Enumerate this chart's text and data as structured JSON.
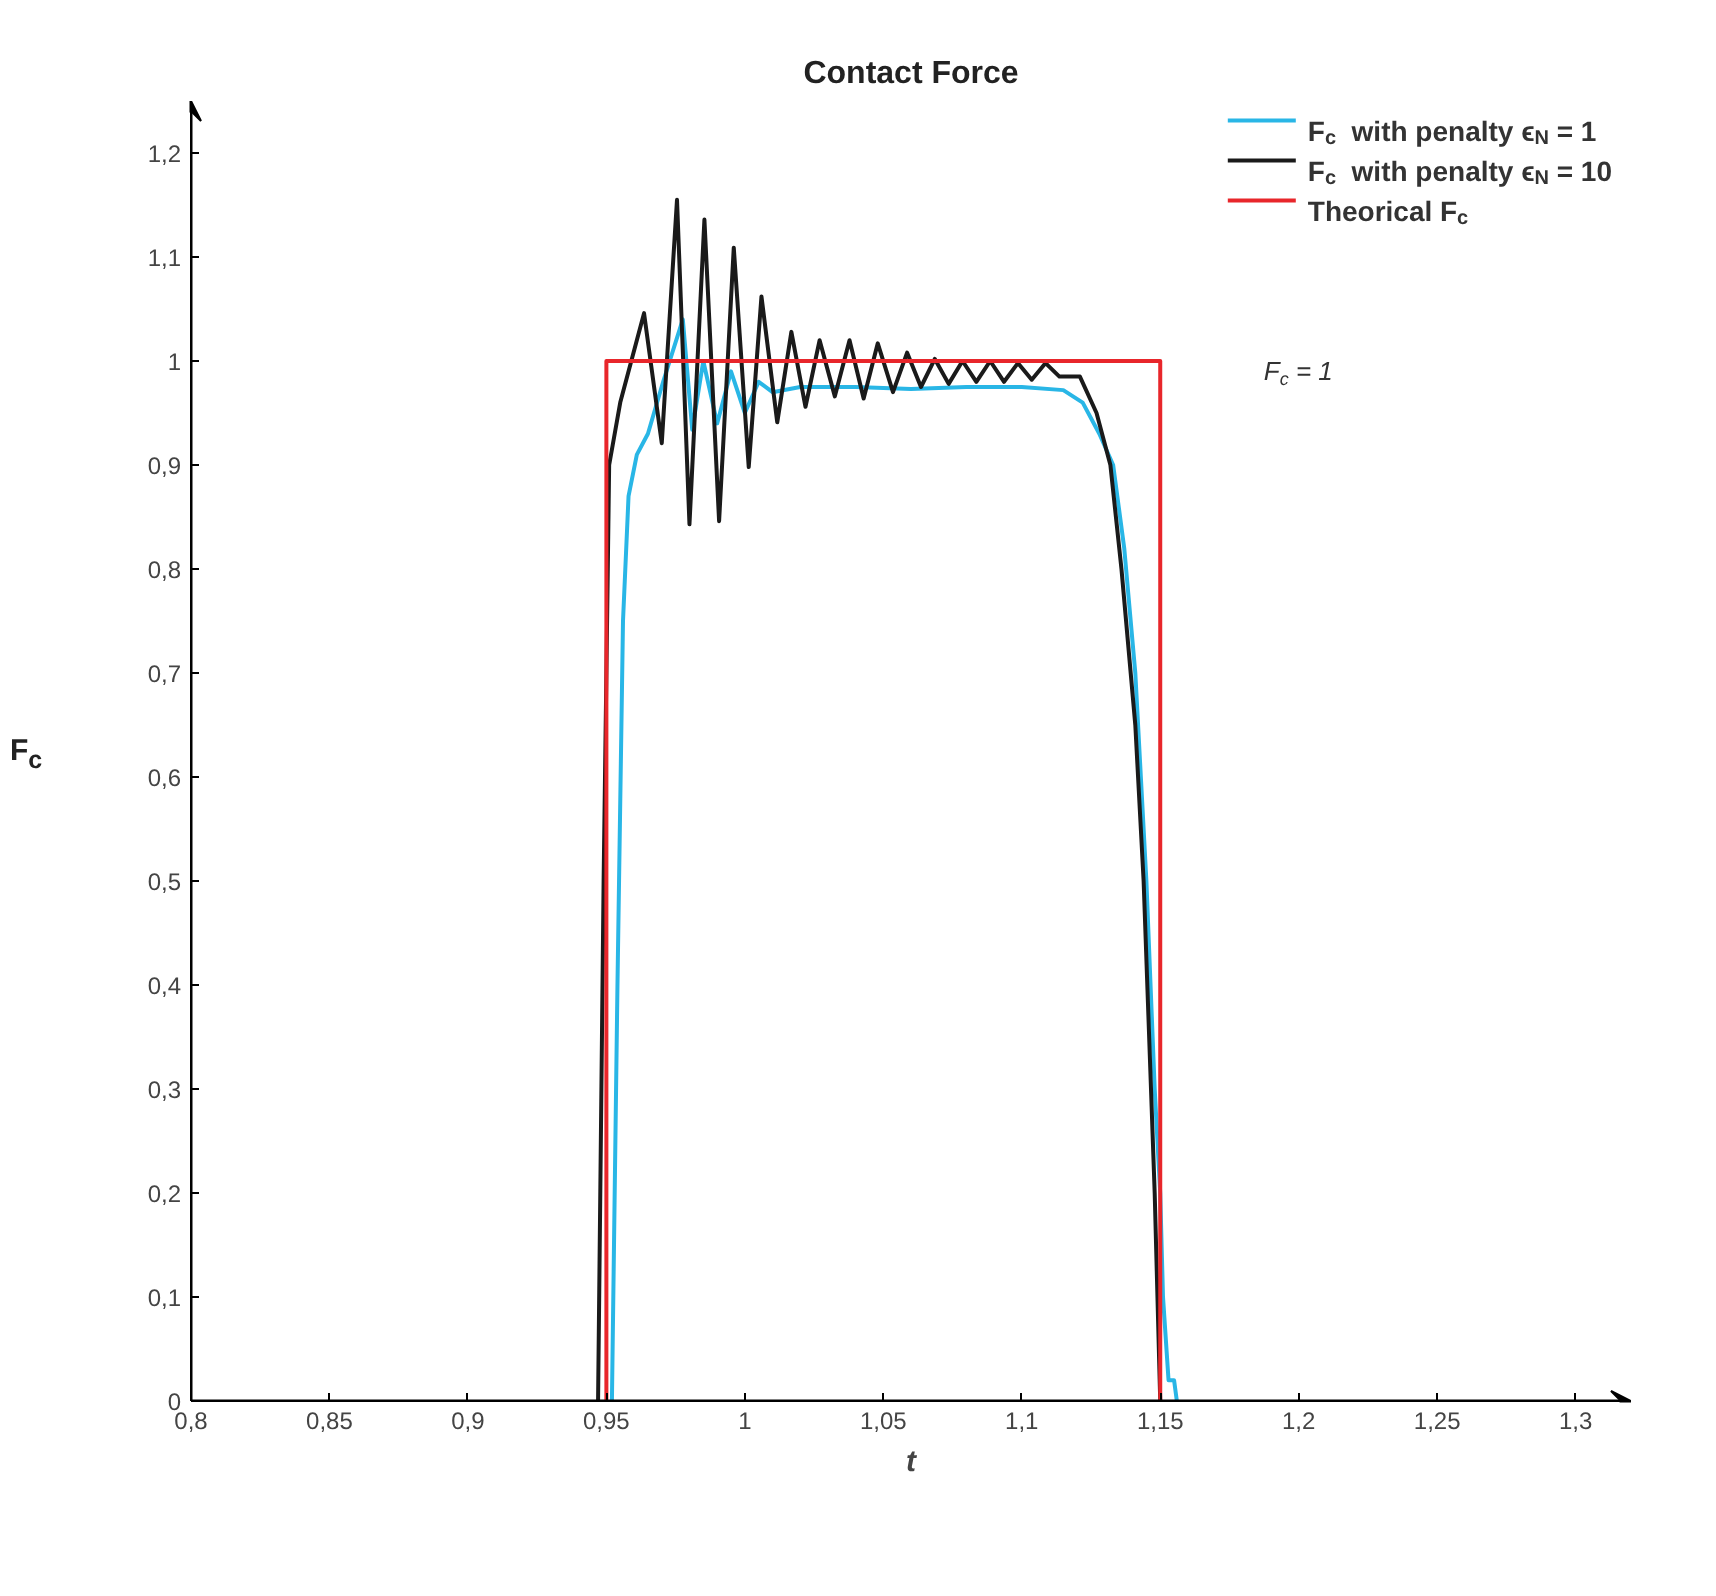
{
  "chart_data": {
    "type": "line",
    "title": "Contact Force",
    "xlabel": "t",
    "ylabel": "F$_{c}$",
    "xlim": [
      0.8,
      1.32
    ],
    "ylim": [
      0,
      1.25
    ],
    "xticks": [
      {
        "value": 0.8,
        "label": "0,8"
      },
      {
        "value": 0.85,
        "label": "0,85"
      },
      {
        "value": 0.9,
        "label": "0,9"
      },
      {
        "value": 0.95,
        "label": "0,95"
      },
      1,
      {
        "value": 1.05,
        "label": "1,05"
      },
      {
        "value": 1.1,
        "label": "1,1"
      },
      {
        "value": 1.15,
        "label": "1,15"
      },
      {
        "value": 1.2,
        "label": "1,2"
      },
      {
        "value": 1.25,
        "label": "1,25"
      },
      {
        "value": 1.3,
        "label": "1,3"
      }
    ],
    "yticks": [
      0,
      {
        "value": 0.1,
        "label": "0,1"
      },
      {
        "value": 0.2,
        "label": "0,2"
      },
      {
        "value": 0.3,
        "label": "0,3"
      },
      {
        "value": 0.4,
        "label": "0,4"
      },
      {
        "value": 0.5,
        "label": "0,5"
      },
      {
        "value": 0.6,
        "label": "0,6"
      },
      {
        "value": 0.7,
        "label": "0,7"
      },
      {
        "value": 0.8,
        "label": "0,8"
      },
      {
        "value": 0.9,
        "label": "0,9"
      },
      1,
      {
        "value": 1.1,
        "label": "1,1"
      },
      {
        "value": 1.2,
        "label": "1,2"
      }
    ],
    "grid": false,
    "legend": "top right",
    "marker": "none",
    "line_style": "solid",
    "annotations": [
      "F$_{c}$ = 1"
    ],
    "series": [
      {
        "name": "F$_{c}$  with penalty ϵ$_{N}$ = 1",
        "color": "#29b6e6",
        "x": [
          0.952,
          0.954,
          0.956,
          0.958,
          0.961,
          0.965,
          0.9705,
          0.9776,
          0.981,
          0.985,
          0.99,
          0.995,
          1.0,
          1.005,
          1.01,
          1.02,
          1.04,
          1.06,
          1.08,
          1.1,
          1.115,
          1.122,
          1.128,
          1.133,
          1.137,
          1.141,
          1.145,
          1.148,
          1.15,
          1.151,
          1.153,
          1.155,
          1.156
        ],
        "values": [
          0,
          0.4,
          0.75,
          0.87,
          0.91,
          0.93,
          0.98,
          1.04,
          0.934,
          1.0,
          0.94,
          0.99,
          0.95,
          0.98,
          0.97,
          0.975,
          0.975,
          0.973,
          0.975,
          0.975,
          0.972,
          0.96,
          0.93,
          0.9,
          0.82,
          0.7,
          0.5,
          0.3,
          0.2,
          0.1,
          0.02,
          0.02,
          0
        ]
      },
      {
        "name": "F$_{c}$  with penalty ϵ$_{N}$ = 10",
        "color": "#1a1a1a",
        "x": [
          0.947,
          0.949,
          0.951,
          0.955,
          0.9636,
          0.97,
          0.9755,
          0.98,
          0.9854,
          0.9907,
          0.996,
          1.0014,
          1.006,
          1.0117,
          1.0168,
          1.0219,
          1.027,
          1.0325,
          1.0378,
          1.0429,
          1.048,
          1.0535,
          1.0586,
          1.0636,
          1.0686,
          1.0736,
          1.0786,
          1.0836,
          1.0886,
          1.0936,
          1.0986,
          1.1036,
          1.1086,
          1.1136,
          1.121,
          1.127,
          1.132,
          1.136,
          1.141,
          1.144,
          1.148,
          1.15
        ],
        "values": [
          0,
          0.5,
          0.9,
          0.96,
          1.046,
          0.921,
          1.155,
          0.843,
          1.136,
          0.846,
          1.109,
          0.898,
          1.062,
          0.941,
          1.028,
          0.956,
          1.02,
          0.966,
          1.02,
          0.964,
          1.017,
          0.97,
          1.008,
          0.975,
          1.002,
          0.978,
          1.0,
          0.98,
          1.0,
          0.98,
          0.998,
          0.982,
          0.998,
          0.985,
          0.985,
          0.95,
          0.9,
          0.8,
          0.65,
          0.5,
          0.2,
          0
        ]
      },
      {
        "name": "Theorical F$_{c}$",
        "color": "#e8262b",
        "x": [
          0.95,
          0.95,
          1.15,
          1.15
        ],
        "values": [
          0,
          1,
          1,
          0
        ]
      }
    ]
  }
}
